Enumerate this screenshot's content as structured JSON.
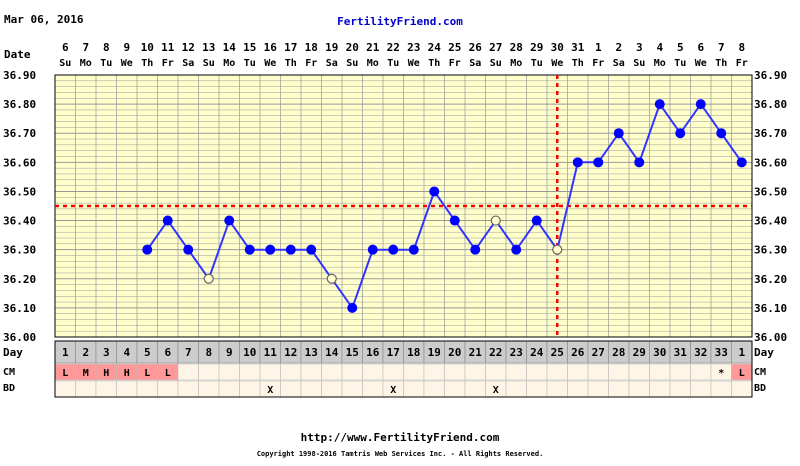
{
  "header": {
    "date": "Mar 06, 2016",
    "site": "FertilityFriend.com",
    "date_label": "Date",
    "day_label": "Day",
    "cm_label": "CM",
    "bd_label": "BD"
  },
  "footer": {
    "url": "http://www.FertilityFriend.com",
    "copyright": "Copyright 1998-2016 Tamtris Web Services Inc. - All Rights Reserved."
  },
  "colors": {
    "plot_bg": "#ffffcc",
    "grid": "#999999",
    "line": "#3333ff",
    "point": "#0000ff",
    "coverline": "#ff0000",
    "cm_fill": "#ff9999",
    "row_bg_dark": "#cccccc",
    "row_bg_light": "#fff5e6"
  },
  "chart_data": {
    "type": "line",
    "title": "",
    "ylim": [
      36.0,
      36.9
    ],
    "y_ticks": [
      "36.90",
      "36.80",
      "36.70",
      "36.60",
      "36.50",
      "36.40",
      "36.30",
      "36.20",
      "36.10",
      "36.00"
    ],
    "date_numbers": [
      "6",
      "7",
      "8",
      "9",
      "10",
      "11",
      "12",
      "13",
      "14",
      "15",
      "16",
      "17",
      "18",
      "19",
      "20",
      "21",
      "22",
      "23",
      "24",
      "25",
      "26",
      "27",
      "28",
      "29",
      "30",
      "31",
      "1",
      "2",
      "3",
      "4",
      "5",
      "6",
      "7",
      "8"
    ],
    "weekdays": [
      "Su",
      "Mo",
      "Tu",
      "We",
      "Th",
      "Fr",
      "Sa",
      "Su",
      "Mo",
      "Tu",
      "We",
      "Th",
      "Fr",
      "Sa",
      "Su",
      "Mo",
      "Tu",
      "We",
      "Th",
      "Fr",
      "Sa",
      "Su",
      "Mo",
      "Tu",
      "We",
      "Th",
      "Fr",
      "Sa",
      "Su",
      "Mo",
      "Tu",
      "We",
      "Th",
      "Fr"
    ],
    "cycle_days": [
      "1",
      "2",
      "3",
      "4",
      "5",
      "6",
      "7",
      "8",
      "9",
      "10",
      "11",
      "12",
      "13",
      "14",
      "15",
      "16",
      "17",
      "18",
      "19",
      "20",
      "21",
      "22",
      "23",
      "24",
      "25",
      "26",
      "27",
      "28",
      "29",
      "30",
      "31",
      "32",
      "33",
      "1"
    ],
    "temperatures": [
      null,
      null,
      null,
      null,
      36.3,
      36.4,
      36.3,
      36.2,
      36.4,
      36.3,
      36.3,
      36.3,
      36.3,
      36.2,
      36.1,
      36.3,
      36.3,
      36.3,
      36.5,
      36.4,
      36.3,
      36.4,
      36.3,
      36.4,
      36.3,
      36.6,
      36.6,
      36.7,
      36.6,
      36.8,
      36.7,
      36.8,
      36.7,
      36.6
    ],
    "open_points": [
      7,
      13,
      21,
      24
    ],
    "coverline": 36.45,
    "ovulation_day": 25,
    "cm": [
      "L",
      "M",
      "H",
      "H",
      "L",
      "L",
      "",
      "",
      "",
      "",
      "",
      "",
      "",
      "",
      "",
      "",
      "",
      "",
      "",
      "",
      "",
      "",
      "",
      "",
      "",
      "",
      "",
      "",
      "",
      "",
      "",
      "",
      "*",
      "L"
    ],
    "bd": [
      "",
      "",
      "",
      "",
      "",
      "",
      "",
      "",
      "",
      "",
      "X",
      "",
      "",
      "",
      "",
      "",
      "X",
      "",
      "",
      "",
      "",
      "X",
      "",
      "",
      "",
      "",
      "",
      "",
      "",
      "",
      "",
      "",
      "",
      ""
    ],
    "grid": true
  }
}
